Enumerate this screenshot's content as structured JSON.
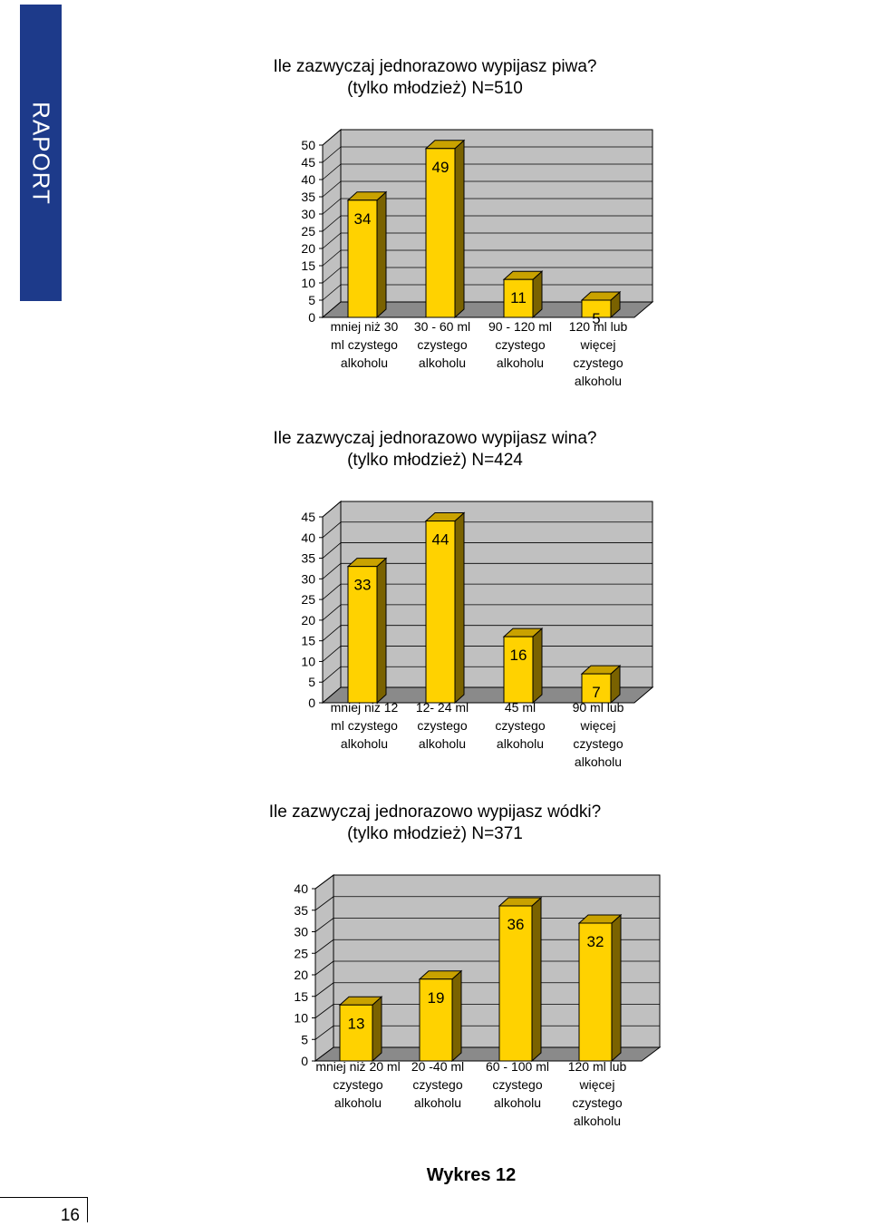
{
  "side_tab": "RAPORT",
  "page_number": "16",
  "caption": "Wykres 12",
  "colors": {
    "bar_front": "#ffd200",
    "bar_top": "#c9a200",
    "bar_side": "#7a6200",
    "wall": "#c0c0c0",
    "floor": "#8a8a8a",
    "tab": "#1d3a8a"
  },
  "chart_data": [
    {
      "type": "bar",
      "title_line1": "Ile zazwyczaj jednorazowo wypijasz piwa?",
      "title_line2": "(tylko młodzież) N=510",
      "categories": [
        [
          "mniej niż 30",
          "ml czystego",
          "alkoholu"
        ],
        [
          "30 - 60 ml",
          "czystego",
          "alkoholu"
        ],
        [
          "90 - 120 ml",
          "czystego",
          "alkoholu"
        ],
        [
          "120 ml lub",
          "więcej",
          "czystego",
          "alkoholu"
        ]
      ],
      "values": [
        34,
        49,
        11,
        5
      ],
      "ylim": [
        0,
        50
      ],
      "yticks": [
        0,
        5,
        10,
        15,
        20,
        25,
        30,
        35,
        40,
        45,
        50
      ],
      "grid": true
    },
    {
      "type": "bar",
      "title_line1": "Ile zazwyczaj jednorazowo wypijasz wina?",
      "title_line2": "(tylko młodzież) N=424",
      "categories": [
        [
          "mniej niż 12",
          "ml czystego",
          "alkoholu"
        ],
        [
          "12- 24 ml",
          "czystego",
          "alkoholu"
        ],
        [
          "45 ml",
          "czystego",
          "alkoholu"
        ],
        [
          "90 ml lub",
          "więcej",
          "czystego",
          "alkoholu"
        ]
      ],
      "values": [
        33,
        44,
        16,
        7
      ],
      "ylim": [
        0,
        45
      ],
      "yticks": [
        0,
        5,
        10,
        15,
        20,
        25,
        30,
        35,
        40,
        45
      ],
      "grid": true
    },
    {
      "type": "bar",
      "title_line1": "Ile zazwyczaj jednorazowo wypijasz wódki?",
      "title_line2": "(tylko młodzież)  N=371",
      "categories": [
        [
          "mniej niż 20 ml",
          "czystego",
          "alkoholu"
        ],
        [
          "20 -40 ml",
          "czystego",
          "alkoholu"
        ],
        [
          "60 - 100 ml",
          "czystego",
          "alkoholu"
        ],
        [
          "120 ml lub",
          "więcej",
          "czystego",
          "alkoholu"
        ]
      ],
      "values": [
        13,
        19,
        36,
        32
      ],
      "ylim": [
        0,
        40
      ],
      "yticks": [
        0,
        5,
        10,
        15,
        20,
        25,
        30,
        35,
        40
      ],
      "grid": true
    }
  ]
}
